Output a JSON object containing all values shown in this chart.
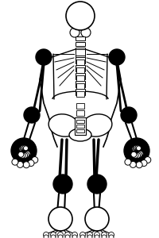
{
  "bg_color": "#ffffff",
  "lc": "#000000",
  "fc": "#000000",
  "oc": "#ffffff",
  "fig_width": 2.01,
  "fig_height": 3.0,
  "dpi": 100
}
